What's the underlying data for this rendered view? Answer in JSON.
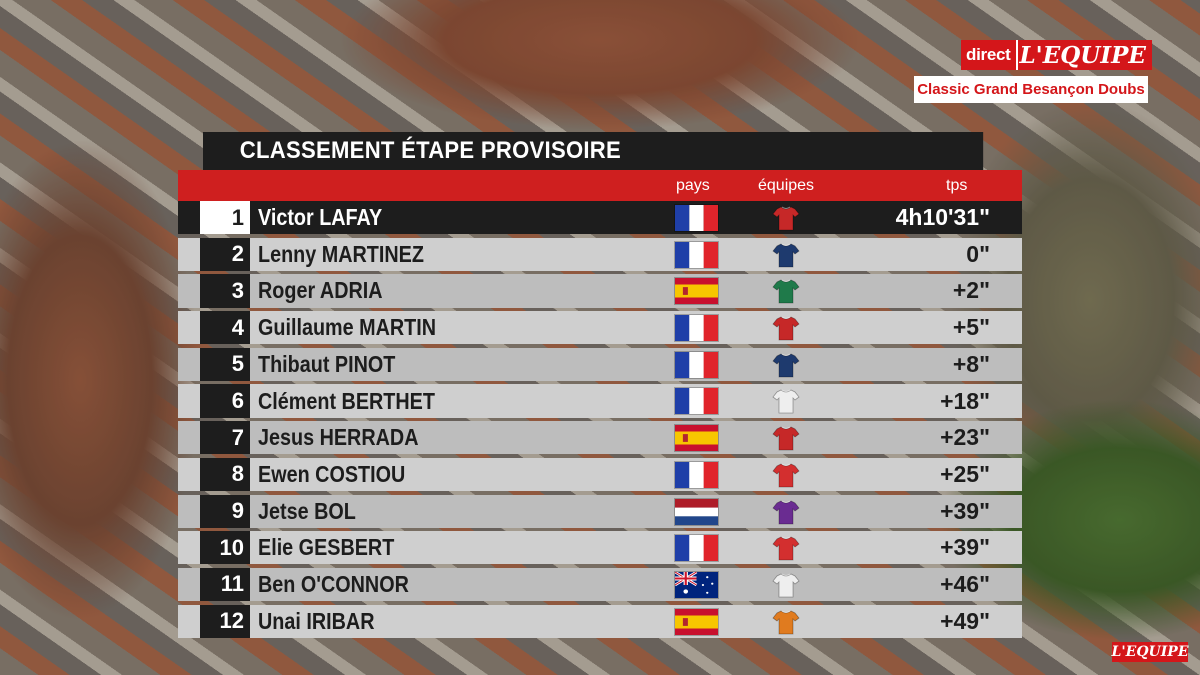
{
  "broadcast": {
    "live_label": "direct",
    "brand": "L'EQUIPE",
    "race": "Classic Grand Besançon Doubs",
    "corner_logo": "L'EQUIPE"
  },
  "classification": {
    "title": "CLASSEMENT ÉTAPE PROVISOIRE",
    "columns": {
      "country": "pays",
      "team": "équipes",
      "time": "tps"
    },
    "riders": [
      {
        "rank": "1",
        "name": "Victor LAFAY",
        "country": "fr",
        "jersey": "#c62828",
        "time": "4h10'31\""
      },
      {
        "rank": "2",
        "name": "Lenny MARTINEZ",
        "country": "fr",
        "jersey": "#1e3a6e",
        "time": "0\""
      },
      {
        "rank": "3",
        "name": "Roger ADRIA",
        "country": "es",
        "jersey": "#1f7a4a",
        "time": "+2\""
      },
      {
        "rank": "4",
        "name": "Guillaume MARTIN",
        "country": "fr",
        "jersey": "#c62828",
        "time": "+5\""
      },
      {
        "rank": "5",
        "name": "Thibaut PINOT",
        "country": "fr",
        "jersey": "#1e3a6e",
        "time": "+8\""
      },
      {
        "rank": "6",
        "name": "Clément BERTHET",
        "country": "fr",
        "jersey": "#eeeeee",
        "time": "+18\""
      },
      {
        "rank": "7",
        "name": "Jesus HERRADA",
        "country": "es",
        "jersey": "#c62828",
        "time": "+23\""
      },
      {
        "rank": "8",
        "name": "Ewen COSTIOU",
        "country": "fr",
        "jersey": "#d32f2f",
        "time": "+25\""
      },
      {
        "rank": "9",
        "name": "Jetse BOL",
        "country": "nl",
        "jersey": "#6a2c91",
        "time": "+39\""
      },
      {
        "rank": "10",
        "name": "Elie GESBERT",
        "country": "fr",
        "jersey": "#d32f2f",
        "time": "+39\""
      },
      {
        "rank": "11",
        "name": "Ben O'CONNOR",
        "country": "au",
        "jersey": "#eeeeee",
        "time": "+46\""
      },
      {
        "rank": "12",
        "name": "Unai IRIBAR",
        "country": "es",
        "jersey": "#e07b1f",
        "time": "+49\""
      }
    ]
  }
}
